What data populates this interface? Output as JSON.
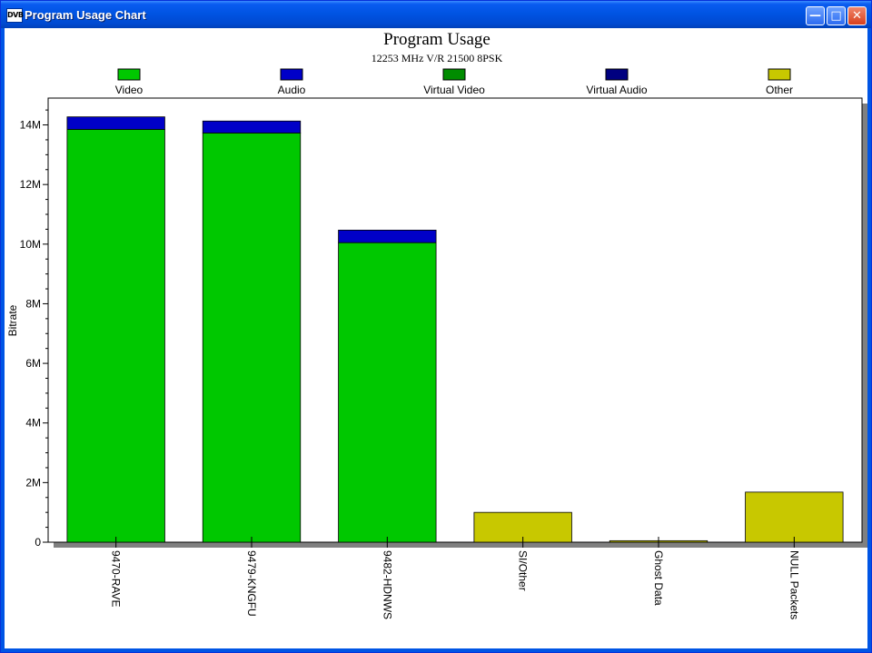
{
  "window": {
    "title": "Program Usage Chart",
    "icon_label": "DVB"
  },
  "chart_data": {
    "type": "bar",
    "stacked": true,
    "title": "Program Usage",
    "subtitle": "12253 MHz V/R 21500 8PSK",
    "xlabel": "",
    "ylabel": "Bitrate",
    "ylim": [
      0,
      14.9
    ],
    "y_unit": "M",
    "yticks": [
      0,
      2,
      4,
      6,
      8,
      10,
      12,
      14
    ],
    "ytick_labels": [
      "0",
      "2M",
      "4M",
      "6M",
      "8M",
      "10M",
      "12M",
      "14M"
    ],
    "legend_position": "top",
    "categories": [
      "9470-RAVE",
      "9479-KNGFU",
      "9482-HDNWS",
      "SI/Other",
      "Ghost Data",
      "NULL Packets"
    ],
    "series": [
      {
        "name": "Video",
        "color": "#00c800",
        "values": [
          13.85,
          13.73,
          10.05,
          0,
          0,
          0
        ]
      },
      {
        "name": "Audio",
        "color": "#0000c8",
        "values": [
          0.42,
          0.4,
          0.42,
          0,
          0,
          0
        ]
      },
      {
        "name": "Virtual Video",
        "color": "#008c00",
        "values": [
          0,
          0,
          0,
          0,
          0,
          0
        ]
      },
      {
        "name": "Virtual Audio",
        "color": "#000080",
        "values": [
          0,
          0,
          0,
          0,
          0,
          0
        ]
      },
      {
        "name": "Other",
        "color": "#c8c800",
        "values": [
          0,
          0,
          0,
          1.0,
          0.05,
          1.68
        ]
      }
    ]
  }
}
